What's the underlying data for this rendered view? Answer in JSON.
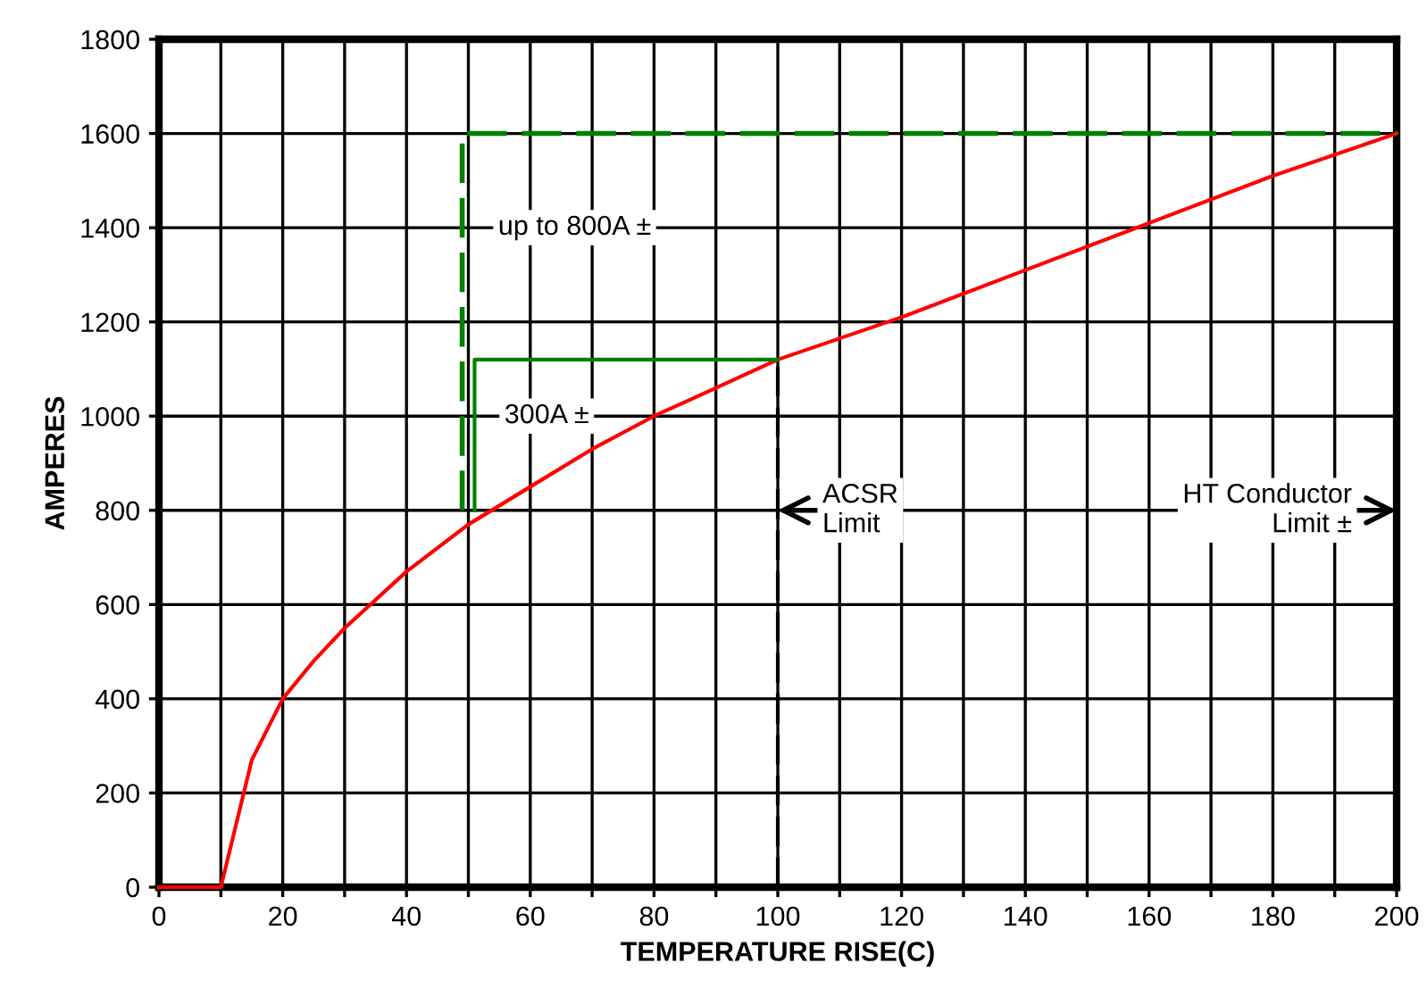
{
  "chart_data": {
    "type": "line",
    "xlabel": "TEMPERATURE RISE(C)",
    "ylabel": "AMPERES",
    "xlim": [
      0,
      200
    ],
    "ylim": [
      0,
      1800
    ],
    "xticks": [
      0,
      {
        "value": 10,
        "label": null
      },
      20,
      {
        "value": 30,
        "label": null
      },
      40,
      {
        "value": 50,
        "label": null
      },
      60,
      {
        "value": 70,
        "label": null
      },
      80,
      {
        "value": 90,
        "label": null
      },
      100,
      {
        "value": 110,
        "label": null
      },
      120,
      {
        "value": 130,
        "label": null
      },
      140,
      {
        "value": 150,
        "label": null
      },
      160,
      {
        "value": 170,
        "label": null
      },
      180,
      {
        "value": 190,
        "label": null
      },
      200
    ],
    "yticks": [
      0,
      200,
      400,
      600,
      800,
      1000,
      1200,
      1400,
      1600,
      1800
    ],
    "grid": true,
    "legend": false,
    "series": [
      {
        "color": "#ff0000",
        "line_style": "solid",
        "x": [
          0,
          10,
          15,
          20,
          25,
          30,
          40,
          50,
          60,
          70,
          80,
          90,
          100,
          120,
          140,
          160,
          180,
          200
        ],
        "values": [
          0,
          0,
          270,
          400,
          480,
          550,
          670,
          770,
          850,
          930,
          1000,
          1060,
          1120,
          1210,
          1310,
          1410,
          1510,
          1600
        ]
      },
      {
        "color": "#008000",
        "line_style": "solid",
        "x": [
          51,
          51,
          100
        ],
        "values": [
          800,
          1120,
          1120
        ]
      },
      {
        "color": "#008000",
        "line_style": "dashed",
        "x": [
          49,
          49,
          200
        ],
        "values": [
          800,
          1600,
          1600
        ]
      },
      {
        "color": "#000000",
        "line_style": "dashed",
        "x": [
          100,
          100
        ],
        "values": [
          0,
          1120
        ]
      }
    ],
    "annotations": [
      {
        "text": "up to 800A ±",
        "x": 50,
        "y": 1400
      },
      {
        "text": "300A ±",
        "x": 51,
        "y": 1000
      },
      {
        "text": "ACSR\nLimit",
        "x": 100,
        "y": 800
      },
      "HT Conductor\nLimit ±"
    ]
  }
}
